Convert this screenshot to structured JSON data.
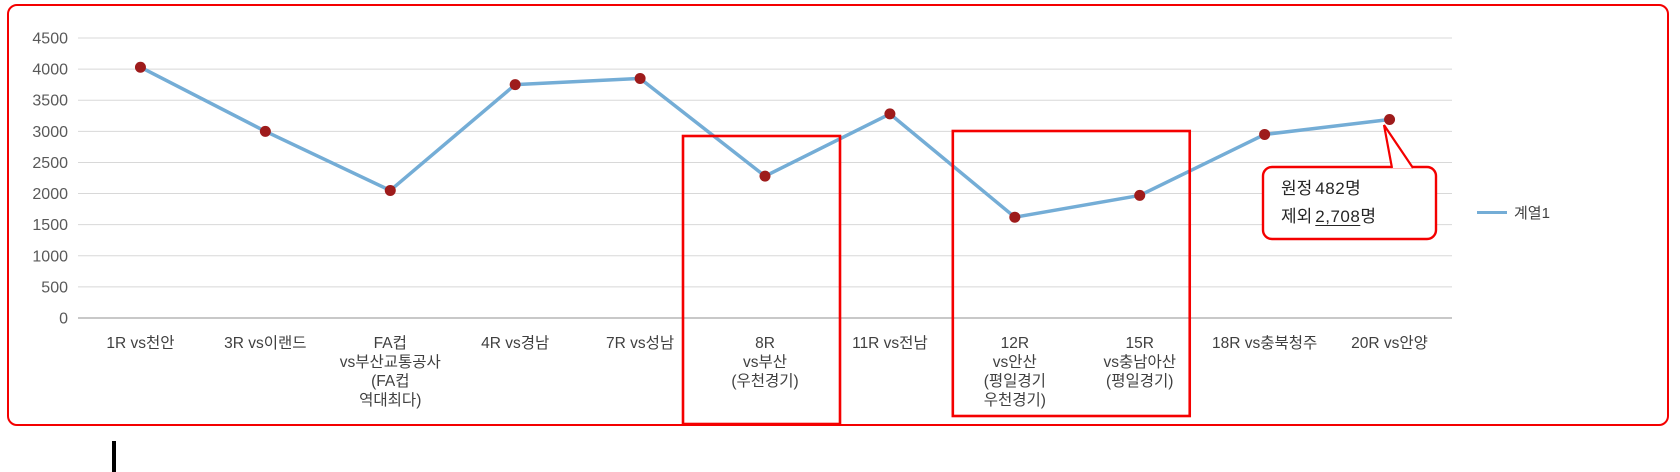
{
  "chart_data": {
    "type": "line",
    "title": "",
    "categories": [
      "1R vs천안",
      "3R vs이랜드",
      "FA컵 vs부산교통공사 (FA컵 역대최다)",
      "4R vs경남",
      "7R vs성남",
      "8R vs부산 (우천경기)",
      "11R vs전남",
      "12R vs안산 (평일경기 우천경기)",
      "15R vs충남아산 (평일경기)",
      "18R vs충북청주",
      "20R vs안양"
    ],
    "categories_multiline": [
      [
        "1R vs천안"
      ],
      [
        "3R vs이랜드"
      ],
      [
        "FA컵",
        "vs부산교통공사",
        "(FA컵",
        "역대최다)"
      ],
      [
        "4R vs경남"
      ],
      [
        "7R vs성남"
      ],
      [
        "8R",
        "vs부산",
        "(우천경기)"
      ],
      [
        "11R vs전남"
      ],
      [
        "12R",
        "vs안산",
        "(평일경기",
        "우천경기)"
      ],
      [
        "15R",
        "vs충남아산",
        "(평일경기)"
      ],
      [
        "18R vs충북청주"
      ],
      [
        "20R vs안양"
      ]
    ],
    "series": [
      {
        "name": "계열1",
        "values": [
          4030,
          3000,
          2050,
          3750,
          3850,
          2280,
          3280,
          1620,
          1970,
          2950,
          3190
        ]
      }
    ],
    "ylim": [
      0,
      4500
    ],
    "ytick_step": 500,
    "yticks": [
      0,
      500,
      1000,
      1500,
      2000,
      2500,
      3000,
      3500,
      4000,
      4500
    ],
    "ytick_labels": [
      "0",
      "500",
      "1000",
      "1500",
      "2000",
      "2500",
      "3000",
      "3500",
      "4000",
      "4500"
    ],
    "xlabel": "",
    "ylabel": "",
    "grid": true,
    "legend_position": "right"
  },
  "legend": {
    "label": "계열1"
  },
  "annotations": {
    "highlight_boxes": [
      {
        "category_start": 5,
        "category_end": 5,
        "around": "8R vs부산 (우천경기)"
      },
      {
        "category_start": 7,
        "category_end": 8,
        "around": "12R vs안산 / 15R vs충남아산"
      }
    ],
    "callout": {
      "attached_to_category": 10,
      "line1": {
        "text_before": "원정",
        "number": "482",
        "text_after": "명"
      },
      "line2": {
        "text_before": "제외",
        "number": "2,708",
        "text_after": "명"
      }
    }
  },
  "colors": {
    "accent_red": "#F40000",
    "line_blue": "#74ADD6",
    "marker_red": "#9E1B1B",
    "grid": "#D8D8D8",
    "axis_line": "#A6A6A6",
    "axis_text": "#595959",
    "label_text": "#3F3F3F"
  }
}
